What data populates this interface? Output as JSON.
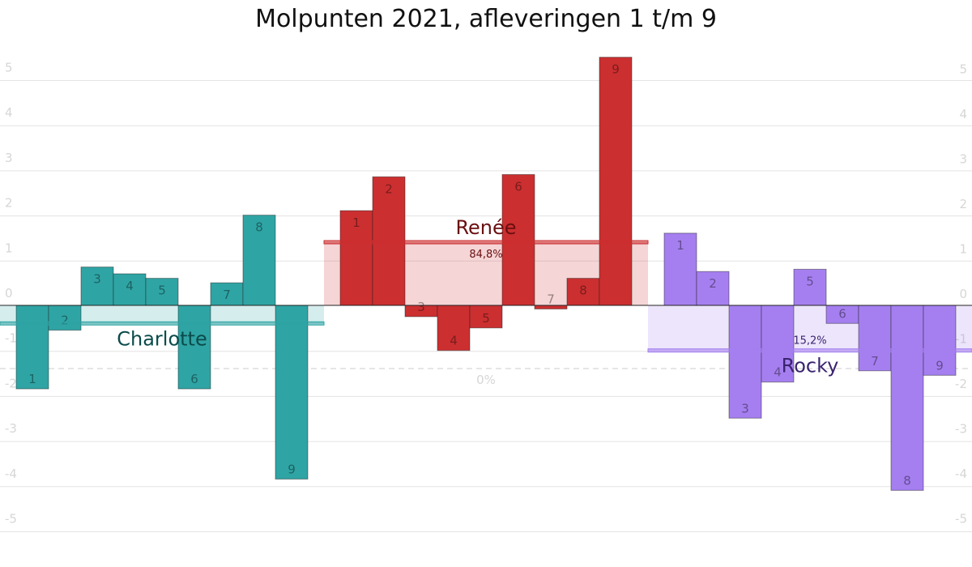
{
  "chart_data": {
    "type": "bar",
    "title": "Molpunten 2021, afleveringen 1 t/m 9",
    "left_axis": {
      "ticks": [
        "5",
        "4",
        "3",
        "2",
        "1",
        "0",
        "-1",
        "-2",
        "-3",
        "-4",
        "-5"
      ],
      "ylim": [
        -5.4,
        5.6
      ]
    },
    "right_axis": {
      "ticks": [
        "5",
        "4",
        "3",
        "2",
        "1",
        "0",
        "-1",
        "-2",
        "-3",
        "-4",
        "-5"
      ],
      "ylim": [
        -5,
        5.4
      ]
    },
    "grid": true,
    "baseline_label": "0%",
    "episodes": [
      "1",
      "2",
      "3",
      "4",
      "5",
      "6",
      "7",
      "8",
      "9"
    ],
    "series": [
      {
        "name": "Charlotte",
        "color": "#2fa4a4",
        "text_color": "#0b4a4a",
        "values": [
          -1.85,
          -0.55,
          0.85,
          0.7,
          0.6,
          -1.85,
          0.5,
          2.0,
          -3.85
        ],
        "share_label": "",
        "mean": -0.4
      },
      {
        "name": "Renée",
        "color": "#cc2f30",
        "text_color": "#6a0f10",
        "values": [
          2.1,
          2.85,
          -0.25,
          -1.0,
          -0.5,
          2.9,
          -0.08,
          0.6,
          5.5
        ],
        "share_label": "84,8%",
        "mean": 1.4
      },
      {
        "name": "Rocky",
        "color": "#a57ff0",
        "text_color": "#3a2470",
        "values": [
          1.6,
          0.75,
          -2.5,
          -1.7,
          0.8,
          -0.4,
          -1.45,
          -4.1,
          -1.55
        ],
        "share_label": "15,2%",
        "mean": -1.0
      }
    ]
  }
}
